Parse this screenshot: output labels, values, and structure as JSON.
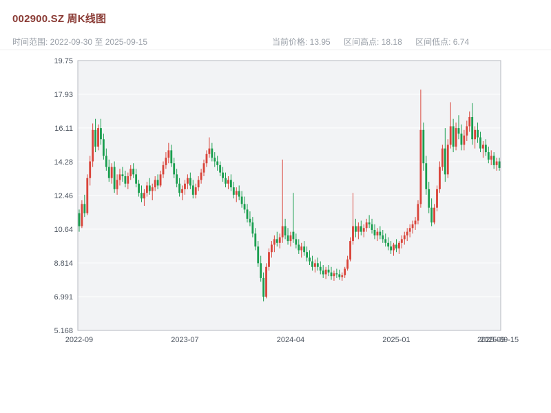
{
  "header": {
    "title": "002900.SZ 周K线图",
    "subtitle_left": "时间范围: 2022-09-30 至 2025-09-15",
    "info": {
      "current": "当前价格: 13.95",
      "high": "区间高点: 18.18",
      "low": "区间低点: 6.74"
    }
  },
  "chart_data": {
    "type": "candlestick",
    "title": "002900.SZ 周K线图",
    "symbol": "002900.SZ",
    "interval": "weekly",
    "date_range": {
      "start": "2022-09-30",
      "end": "2025-09-15"
    },
    "current_price": 13.95,
    "range_high": 18.18,
    "range_low": 6.74,
    "ylim": [
      5.168,
      19.75
    ],
    "grid": true,
    "y_ticks": [
      "19.75",
      "17.93",
      "16.11",
      "14.28",
      "12.46",
      "10.64",
      "8.814",
      "6.991",
      "5.168"
    ],
    "x_ticks": [
      {
        "i": 0,
        "label": "2022-09"
      },
      {
        "i": 39,
        "label": "2023-07"
      },
      {
        "i": 78,
        "label": "2024-04"
      },
      {
        "i": 117,
        "label": "2025-01"
      },
      {
        "i": 152,
        "label": "2025-09"
      },
      {
        "i": 155,
        "label": "2025-09-15"
      }
    ],
    "colors": {
      "up": "#d9443a",
      "down": "#1a9e4f",
      "plot_bg": "#f2f3f5",
      "grid": "#ffffff",
      "border": "#b6bac0",
      "axis_text": "#4d5560"
    },
    "candles": [
      [
        11.5,
        11.7,
        10.5,
        10.8
      ],
      [
        10.8,
        12.2,
        10.7,
        12.0
      ],
      [
        12.0,
        12.5,
        11.3,
        11.5
      ],
      [
        11.5,
        13.6,
        11.4,
        13.4
      ],
      [
        13.4,
        14.6,
        13.0,
        14.3
      ],
      [
        14.3,
        16.35,
        14.0,
        16.0
      ],
      [
        16.0,
        16.6,
        14.8,
        15.1
      ],
      [
        15.1,
        16.3,
        14.9,
        16.1
      ],
      [
        16.1,
        16.6,
        15.2,
        15.5
      ],
      [
        15.5,
        15.8,
        14.4,
        14.6
      ],
      [
        14.6,
        15.0,
        13.8,
        14.0
      ],
      [
        14.0,
        14.4,
        13.2,
        13.4
      ],
      [
        13.4,
        14.2,
        13.1,
        14.0
      ],
      [
        14.0,
        14.3,
        12.6,
        12.8
      ],
      [
        12.8,
        13.6,
        12.5,
        13.3
      ],
      [
        13.3,
        13.9,
        13.0,
        13.6
      ],
      [
        13.6,
        14.0,
        13.2,
        13.5
      ],
      [
        13.5,
        13.8,
        12.9,
        13.1
      ],
      [
        13.1,
        13.7,
        12.8,
        13.5
      ],
      [
        13.5,
        14.1,
        13.3,
        13.9
      ],
      [
        13.9,
        14.2,
        13.4,
        13.6
      ],
      [
        13.6,
        13.9,
        12.9,
        13.1
      ],
      [
        13.1,
        13.3,
        12.4,
        12.6
      ],
      [
        12.6,
        13.0,
        12.1,
        12.3
      ],
      [
        12.3,
        12.8,
        11.9,
        12.6
      ],
      [
        12.6,
        13.2,
        12.4,
        13.0
      ],
      [
        13.0,
        13.4,
        12.5,
        12.7
      ],
      [
        12.7,
        13.1,
        12.2,
        12.9
      ],
      [
        12.9,
        13.5,
        12.7,
        13.3
      ],
      [
        13.3,
        13.6,
        12.8,
        13.0
      ],
      [
        13.0,
        13.8,
        12.9,
        13.6
      ],
      [
        13.6,
        14.3,
        13.4,
        14.1
      ],
      [
        14.1,
        14.8,
        13.9,
        14.5
      ],
      [
        14.5,
        15.3,
        14.2,
        14.9
      ],
      [
        14.9,
        15.2,
        14.0,
        14.2
      ],
      [
        14.2,
        14.5,
        13.4,
        13.6
      ],
      [
        13.6,
        13.9,
        12.9,
        13.1
      ],
      [
        13.1,
        13.4,
        12.4,
        12.6
      ],
      [
        12.6,
        13.0,
        12.2,
        12.8
      ],
      [
        12.8,
        13.3,
        12.5,
        13.1
      ],
      [
        13.1,
        13.6,
        12.8,
        13.4
      ],
      [
        13.4,
        13.7,
        12.8,
        13.0
      ],
      [
        13.0,
        13.3,
        12.3,
        12.5
      ],
      [
        12.5,
        13.1,
        12.3,
        12.9
      ],
      [
        12.9,
        13.5,
        12.7,
        13.3
      ],
      [
        13.3,
        13.9,
        13.1,
        13.7
      ],
      [
        13.7,
        14.4,
        13.5,
        14.2
      ],
      [
        14.2,
        14.9,
        14.0,
        14.7
      ],
      [
        14.7,
        15.6,
        14.5,
        15.0
      ],
      [
        15.0,
        15.3,
        14.3,
        14.5
      ],
      [
        14.5,
        14.8,
        14.0,
        14.3
      ],
      [
        14.3,
        14.6,
        13.8,
        14.1
      ],
      [
        14.1,
        14.3,
        13.5,
        13.7
      ],
      [
        13.7,
        14.0,
        13.2,
        13.4
      ],
      [
        13.4,
        13.7,
        12.9,
        13.1
      ],
      [
        13.1,
        13.5,
        12.8,
        13.3
      ],
      [
        13.3,
        13.6,
        12.7,
        12.9
      ],
      [
        12.9,
        13.2,
        12.3,
        12.5
      ],
      [
        12.5,
        12.9,
        12.1,
        12.7
      ],
      [
        12.7,
        13.0,
        12.2,
        12.4
      ],
      [
        12.4,
        12.7,
        11.8,
        12.0
      ],
      [
        12.0,
        12.4,
        11.5,
        11.7
      ],
      [
        11.7,
        12.0,
        11.0,
        11.2
      ],
      [
        11.2,
        11.6,
        10.8,
        11.0
      ],
      [
        11.0,
        11.3,
        10.2,
        10.4
      ],
      [
        10.4,
        10.7,
        9.5,
        9.7
      ],
      [
        9.7,
        10.0,
        8.6,
        8.8
      ],
      [
        8.8,
        9.2,
        7.8,
        8.0
      ],
      [
        8.0,
        8.3,
        6.74,
        6.99
      ],
      [
        6.99,
        8.8,
        6.9,
        8.6
      ],
      [
        8.6,
        9.6,
        8.4,
        9.4
      ],
      [
        9.4,
        10.0,
        9.1,
        9.8
      ],
      [
        9.8,
        10.3,
        9.4,
        10.1
      ],
      [
        10.1,
        10.5,
        9.7,
        9.9
      ],
      [
        9.9,
        10.4,
        9.6,
        10.2
      ],
      [
        10.2,
        14.4,
        9.9,
        10.8
      ],
      [
        10.8,
        11.2,
        10.1,
        10.3
      ],
      [
        10.3,
        10.7,
        9.8,
        10.0
      ],
      [
        10.0,
        10.5,
        9.7,
        10.3
      ],
      [
        10.5,
        12.6,
        9.9,
        10.1
      ],
      [
        10.1,
        10.4,
        9.6,
        9.8
      ],
      [
        9.8,
        10.1,
        9.3,
        9.5
      ],
      [
        9.5,
        9.9,
        9.1,
        9.7
      ],
      [
        9.7,
        10.0,
        9.2,
        9.4
      ],
      [
        9.4,
        9.7,
        8.9,
        9.1
      ],
      [
        9.1,
        9.5,
        8.7,
        8.9
      ],
      [
        8.9,
        9.2,
        8.4,
        8.6
      ],
      [
        8.6,
        9.0,
        8.3,
        8.8
      ],
      [
        8.8,
        9.1,
        8.4,
        8.6
      ],
      [
        8.6,
        8.9,
        8.2,
        8.4
      ],
      [
        8.4,
        8.7,
        8.0,
        8.2
      ],
      [
        8.2,
        8.6,
        7.95,
        8.45
      ],
      [
        8.45,
        8.7,
        8.1,
        8.3
      ],
      [
        8.3,
        8.6,
        7.9,
        8.1
      ],
      [
        8.1,
        8.4,
        7.85,
        8.25
      ],
      [
        8.25,
        8.5,
        8.0,
        8.2
      ],
      [
        8.2,
        8.45,
        7.9,
        8.05
      ],
      [
        8.05,
        8.3,
        7.85,
        8.15
      ],
      [
        8.15,
        8.6,
        8.0,
        8.5
      ],
      [
        8.5,
        9.2,
        8.4,
        9.0
      ],
      [
        9.0,
        10.2,
        8.9,
        10.0
      ],
      [
        10.0,
        12.6,
        9.8,
        10.8
      ],
      [
        10.8,
        11.2,
        10.2,
        10.5
      ],
      [
        10.5,
        11.0,
        10.1,
        10.8
      ],
      [
        10.8,
        11.1,
        10.3,
        10.5
      ],
      [
        10.5,
        10.9,
        10.2,
        10.7
      ],
      [
        10.7,
        11.2,
        10.5,
        11.0
      ],
      [
        11.0,
        11.4,
        10.7,
        10.9
      ],
      [
        10.9,
        11.2,
        10.4,
        10.6
      ],
      [
        10.6,
        10.9,
        10.1,
        10.3
      ],
      [
        10.3,
        10.7,
        10.0,
        10.5
      ],
      [
        10.5,
        10.8,
        10.1,
        10.3
      ],
      [
        10.3,
        10.6,
        9.9,
        10.1
      ],
      [
        10.1,
        10.4,
        9.7,
        9.9
      ],
      [
        9.9,
        10.2,
        9.5,
        9.7
      ],
      [
        9.7,
        10.0,
        9.3,
        9.5
      ],
      [
        9.5,
        9.9,
        9.2,
        9.8
      ],
      [
        9.8,
        10.1,
        9.4,
        9.6
      ],
      [
        9.6,
        10.0,
        9.3,
        9.9
      ],
      [
        9.9,
        10.3,
        9.6,
        10.1
      ],
      [
        10.1,
        10.5,
        9.8,
        10.3
      ],
      [
        10.3,
        10.7,
        10.0,
        10.5
      ],
      [
        10.5,
        10.9,
        10.2,
        10.7
      ],
      [
        10.7,
        11.1,
        10.4,
        10.9
      ],
      [
        10.9,
        11.3,
        10.6,
        11.1
      ],
      [
        11.1,
        12.2,
        10.9,
        12.0
      ],
      [
        12.0,
        18.18,
        11.8,
        16.0
      ],
      [
        16.0,
        16.4,
        13.8,
        14.2
      ],
      [
        14.2,
        14.6,
        12.5,
        12.8
      ],
      [
        12.8,
        13.2,
        11.5,
        11.8
      ],
      [
        11.8,
        12.3,
        10.8,
        11.0
      ],
      [
        11.0,
        12.0,
        10.9,
        11.8
      ],
      [
        11.8,
        13.0,
        11.6,
        12.8
      ],
      [
        12.8,
        14.3,
        12.6,
        14.0
      ],
      [
        14.0,
        15.2,
        13.8,
        15.0
      ],
      [
        15.0,
        16.1,
        13.2,
        13.6
      ],
      [
        13.6,
        15.5,
        13.4,
        15.2
      ],
      [
        15.2,
        17.5,
        15.0,
        16.2
      ],
      [
        16.2,
        16.6,
        14.8,
        15.1
      ],
      [
        15.1,
        16.4,
        14.9,
        16.1
      ],
      [
        16.1,
        16.8,
        15.5,
        15.8
      ],
      [
        15.8,
        16.3,
        14.9,
        15.2
      ],
      [
        15.2,
        16.0,
        14.9,
        15.7
      ],
      [
        15.7,
        16.5,
        15.4,
        16.2
      ],
      [
        16.2,
        17.0,
        15.9,
        16.7
      ],
      [
        16.7,
        17.45,
        15.2,
        15.5
      ],
      [
        15.5,
        16.2,
        15.0,
        16.0
      ],
      [
        16.0,
        16.4,
        15.3,
        15.6
      ],
      [
        15.6,
        15.9,
        14.8,
        15.0
      ],
      [
        15.0,
        15.4,
        14.5,
        15.2
      ],
      [
        15.2,
        15.5,
        14.6,
        14.8
      ],
      [
        14.8,
        15.1,
        14.2,
        14.4
      ],
      [
        14.4,
        14.9,
        14.1,
        14.6
      ],
      [
        14.6,
        14.8,
        13.9,
        14.1
      ],
      [
        14.1,
        14.5,
        13.8,
        14.3
      ],
      [
        14.3,
        14.5,
        13.8,
        13.95
      ]
    ]
  }
}
